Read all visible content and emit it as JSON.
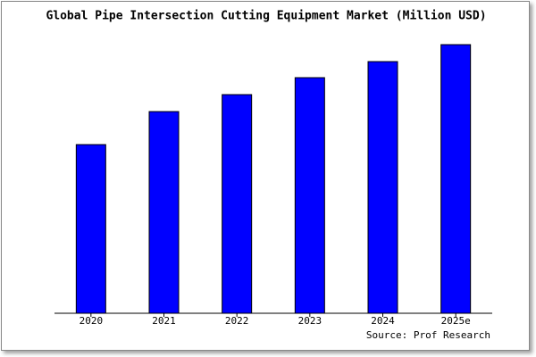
{
  "chart_data": {
    "type": "bar",
    "title": "Global Pipe Intersection Cutting Equipment Market (Million USD)",
    "categories": [
      "2020",
      "2021",
      "2022",
      "2023",
      "2024",
      "2025e"
    ],
    "values": [
      189,
      226,
      245,
      264,
      282,
      301
    ],
    "color": "#0000ff",
    "ylim": [
      0,
      306
    ],
    "source": "Source: Prof Research"
  }
}
